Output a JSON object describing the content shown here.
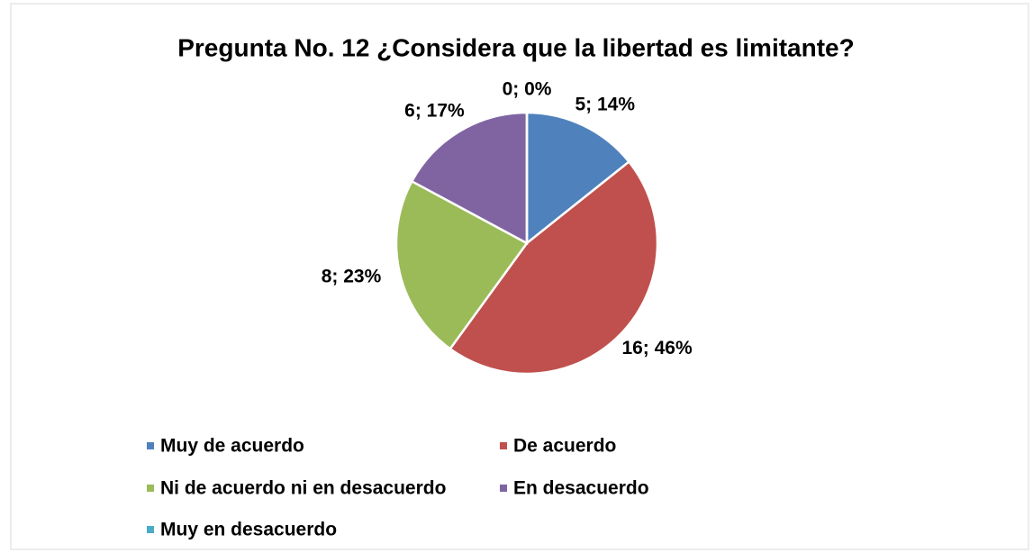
{
  "chart_data": {
    "type": "pie",
    "title": "Pregunta No. 12 ¿Considera que la libertad es limitante?",
    "categories": [
      "Muy de acuerdo",
      "De acuerdo",
      "Ni de acuerdo ni en desacuerdo",
      "En desacuerdo",
      "Muy en desacuerdo"
    ],
    "values": [
      5,
      16,
      8,
      6,
      0
    ],
    "value_labels": [
      "5; 14%",
      "16; 46%",
      "8; 23%",
      "6; 17%",
      "0; 0%"
    ],
    "colors": [
      "#4f81bd",
      "#c0504d",
      "#9bbb59",
      "#8064a2",
      "#4bacc6"
    ],
    "legend": "bottom"
  }
}
